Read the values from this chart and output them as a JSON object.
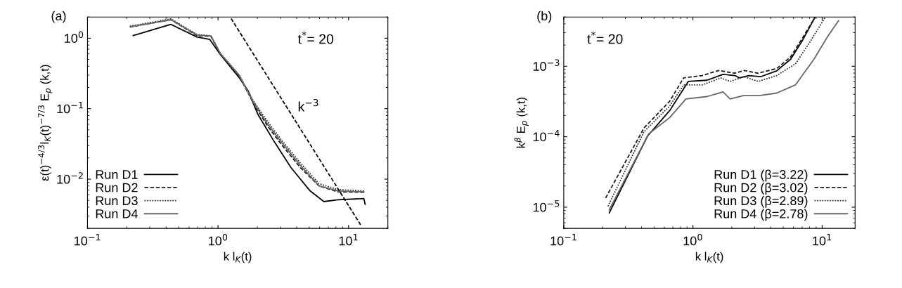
{
  "chart_data": [
    {
      "type": "line",
      "title": "(a)",
      "xlabel": "k l$_{K}$(t)",
      "ylabel": "ε(t)$^{−4/3}$l$_{K}$(t)$^{−7/3}$ E$_{p}$ (k,t)",
      "log": "xy",
      "grid": false,
      "legend": "bottom left",
      "xlim": [
        0.1,
        20
      ],
      "ylim": [
        0.002,
        2
      ],
      "xticks": [
        {
          "value": 0.1,
          "label": "10$^{−1}$"
        },
        {
          "value": 1,
          "label": "10$^{0}$"
        },
        {
          "value": 10,
          "label": "10$^{1}$"
        }
      ],
      "yticks": [
        {
          "value": 0.01,
          "label": "10$^{−2}$"
        },
        {
          "value": 0.1,
          "label": "10$^{−1}$"
        },
        {
          "value": 1,
          "label": "10$^{0}$"
        }
      ],
      "annotations": [
        "t$^{*}$= 20",
        "k$^{−3}$"
      ],
      "series": [
        {
          "name": "Run D1",
          "color": "#000000",
          "line_style": "solid",
          "x": [
            0.224,
            0.436,
            0.689,
            0.865,
            1.04,
            1.45,
            1.71,
            2.02,
            2.71,
            3.62,
            5.04,
            6.47,
            8.3,
            13.1,
            13.4
          ],
          "values": [
            1.09,
            1.57,
            1.04,
            0.96,
            0.59,
            0.277,
            0.176,
            0.083,
            0.0335,
            0.0146,
            0.0069,
            0.0048,
            0.0051,
            0.0053,
            0.0044
          ]
        },
        {
          "name": "Run D2",
          "color": "#1a1a1a",
          "line_style": "dashed",
          "x": [
            0.211,
            0.436,
            0.689,
            0.883,
            1.04,
            1.45,
            1.86,
            2.39,
            3.06,
            4.27,
            5.95,
            8.3,
            13.1
          ],
          "values": [
            1.44,
            1.83,
            1.09,
            1.06,
            0.598,
            0.294,
            0.121,
            0.057,
            0.031,
            0.0146,
            0.008,
            0.0066,
            0.0065
          ]
        },
        {
          "name": "Run D3",
          "color": "#333333",
          "line_style": "dotted",
          "x": [
            0.211,
            0.436,
            0.689,
            0.883,
            1.04,
            1.45,
            1.86,
            2.39,
            3.06,
            4.27,
            5.95,
            8.3,
            13.1
          ],
          "values": [
            1.48,
            1.88,
            1.13,
            1.08,
            0.612,
            0.303,
            0.13,
            0.066,
            0.036,
            0.017,
            0.0086,
            0.0071,
            0.0068
          ]
        },
        {
          "name": "Run D4",
          "color": "#666666",
          "line_style": "solid",
          "x": [
            0.215,
            0.436,
            0.689,
            0.883,
            1.04,
            1.45,
            1.86,
            2.39,
            3.06,
            4.27,
            5.95,
            8.3,
            13.1
          ],
          "values": [
            1.46,
            1.83,
            1.11,
            1.08,
            0.608,
            0.299,
            0.125,
            0.061,
            0.0335,
            0.0157,
            0.008,
            0.0068,
            0.0066
          ]
        },
        {
          "color": "#000000",
          "line_style": "dashed",
          "x": [
            1.26,
            12.6
          ],
          "values": [
            1.9,
            0.00213
          ]
        }
      ]
    },
    {
      "type": "line",
      "title": "(b)",
      "xlabel": "k l$_{K}$(t)",
      "ylabel": "k$^{β}$ E$_{p}$ (k,t)",
      "log": "xy",
      "grid": false,
      "legend": "bottom right",
      "xlim": [
        0.1,
        18
      ],
      "ylim": [
        5e-06,
        0.005
      ],
      "xticks": [
        {
          "value": 0.1,
          "label": "10$^{−1}$"
        },
        {
          "value": 1,
          "label": "10$^{0}$"
        },
        {
          "value": 10,
          "label": "10$^{1}$"
        }
      ],
      "yticks": [
        {
          "value": 1e-05,
          "label": "10$^{−5}$"
        },
        {
          "value": 0.0001,
          "label": "10$^{−4}$"
        },
        {
          "value": 0.001,
          "label": "10$^{−3}$"
        }
      ],
      "annotations": [
        "t$^{*}$= 20"
      ],
      "series": [
        {
          "name": "Run D1 (β=3.22)",
          "color": "#000000",
          "line_style": "solid",
          "x": [
            0.225,
            0.445,
            0.661,
            0.92,
            1.28,
            1.71,
            2.11,
            2.29,
            2.71,
            3.33,
            4.45,
            5.71,
            7.03,
            8.83
          ],
          "values": [
            8.3e-06,
            0.000102,
            0.000235,
            0.000609,
            0.000633,
            0.000766,
            0.000738,
            0.000683,
            0.000738,
            0.00071,
            0.000859,
            0.00126,
            0.00231,
            0.005
          ]
        },
        {
          "name": "Run D2 (β=3.02)",
          "color": "#1a1a1a",
          "line_style": "dashed",
          "x": [
            0.211,
            0.418,
            0.661,
            0.847,
            1.18,
            1.58,
            2.11,
            2.49,
            3.2,
            4.45,
            5.71,
            7.03,
            8.83
          ],
          "values": [
            1.35e-05,
            0.000133,
            0.000319,
            0.000683,
            0.000738,
            0.000871,
            0.000796,
            0.000871,
            0.000796,
            0.000927,
            0.00136,
            0.00249,
            0.005
          ]
        },
        {
          "name": "Run D3 (β=2.89)",
          "color": "#333333",
          "line_style": "dotted",
          "x": [
            0.22,
            0.418,
            0.661,
            0.847,
            1.18,
            1.64,
            1.94,
            2.49,
            3.2,
            4.45,
            6.21,
            7.96,
            10.6
          ],
          "values": [
            1.03e-05,
            0.000118,
            0.000273,
            0.000543,
            0.000543,
            0.000683,
            0.000609,
            0.00071,
            0.000609,
            0.000738,
            0.00108,
            0.00214,
            0.005
          ]
        },
        {
          "name": "Run D4 (β=2.78)",
          "color": "#666666",
          "line_style": "solid",
          "x": [
            0.225,
            0.455,
            0.661,
            0.883,
            1.28,
            1.71,
            1.94,
            2.49,
            3.33,
            4.45,
            6.21,
            8.65,
            11.1,
            13.4
          ],
          "values": [
            9.2e-06,
            0.00011,
            0.000187,
            0.000343,
            0.000371,
            0.000432,
            0.000343,
            0.000385,
            0.000385,
            0.000416,
            0.000543,
            0.00126,
            0.00269,
            0.00443
          ]
        }
      ]
    }
  ]
}
